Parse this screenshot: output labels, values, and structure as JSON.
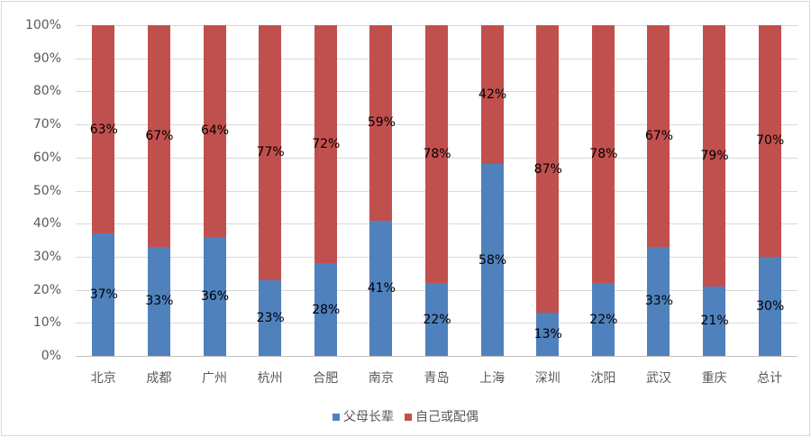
{
  "chart_data": {
    "type": "bar",
    "stacked": true,
    "percent": true,
    "title": "",
    "xlabel": "",
    "ylabel": "",
    "ylim": [
      0,
      100
    ],
    "yticks": [
      "0%",
      "10%",
      "20%",
      "30%",
      "40%",
      "50%",
      "60%",
      "70%",
      "80%",
      "90%",
      "100%"
    ],
    "grid": true,
    "legend_position": "bottom",
    "categories": [
      "北京",
      "成都",
      "广州",
      "杭州",
      "合肥",
      "南京",
      "青岛",
      "上海",
      "深圳",
      "沈阳",
      "武汉",
      "重庆",
      "总计"
    ],
    "series": [
      {
        "name": "父母长辈",
        "color": "#4F81BD",
        "values": [
          37,
          33,
          36,
          23,
          28,
          41,
          22,
          58,
          13,
          22,
          33,
          21,
          30
        ],
        "labels": [
          "37%",
          "33%",
          "36%",
          "23%",
          "28%",
          "41%",
          "22%",
          "58%",
          "13%",
          "22%",
          "33%",
          "21%",
          "30%"
        ]
      },
      {
        "name": "自己或配偶",
        "color": "#C0504D",
        "values": [
          63,
          67,
          64,
          77,
          72,
          59,
          78,
          42,
          87,
          78,
          67,
          79,
          70
        ],
        "labels": [
          "63%",
          "67%",
          "64%",
          "77%",
          "72%",
          "59%",
          "78%",
          "42%",
          "87%",
          "78%",
          "67%",
          "79%",
          "70%"
        ]
      }
    ]
  }
}
